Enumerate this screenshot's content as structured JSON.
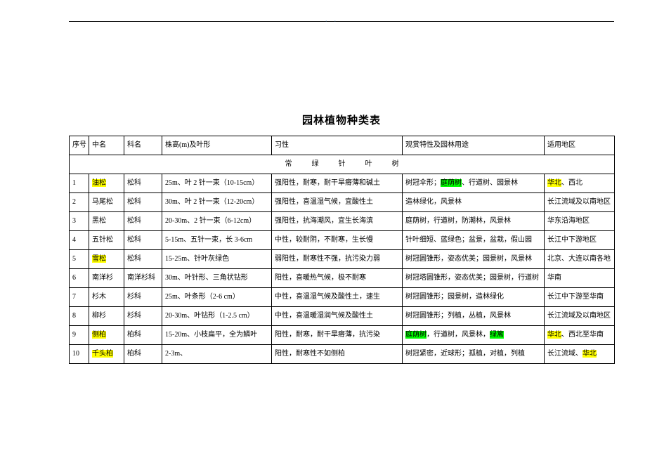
{
  "title": "园林植物种类表",
  "headers": {
    "index": "序号",
    "name": "中名",
    "family": "科名",
    "form": "株高(m)及叶形",
    "habit": "习性",
    "use": "观赏特性及园林用途",
    "region": "适用地区"
  },
  "section_label": "常绿针叶树",
  "rows": [
    {
      "idx": "1",
      "name": "油松",
      "name_hl": true,
      "family": "松科",
      "form": "25m、叶 2 针一束（10-15cm）",
      "habit": "强阳性，耐寒，耐干旱瘠薄和碱土",
      "use_pre": "树冠伞形；",
      "use_hl": "庭荫树",
      "use_hl_class": "hl-green",
      "use_post": "、行道树、园景林",
      "region_hl": "华北",
      "region_hl_class": "hl-yellow",
      "region_post": "、西北"
    },
    {
      "idx": "2",
      "name": "马尾松",
      "family": "松科",
      "form": "30m、叶 2 针一束（12-20cm）",
      "habit": "强阳性，喜温湿气候，宜酸性土",
      "use_pre": "造林绿化，风景林",
      "region_post": "长江流域及以南地区"
    },
    {
      "idx": "3",
      "name": "黑松",
      "family": "松科",
      "form": "20-30m、2 针一束（6-12cm）",
      "habit": "强阳性，抗海潮风，宜生长海滨",
      "use_pre": "庭荫树，行道树，防潮林，风景林",
      "region_post": "华东沿海地区"
    },
    {
      "idx": "4",
      "name": "五针松",
      "family": "松科",
      "form": "5-15m、五针一束，长 3-6cm",
      "habit": "中性，较耐阴，不耐寒，生长慢",
      "use_pre": "针叶细短、蓝绿色；盆景，盆栽，假山园",
      "region_post": "长江中下游地区"
    },
    {
      "idx": "5",
      "name": "雪松",
      "name_hl": true,
      "family": "松科",
      "form": "15-25m、针叶灰绿色",
      "habit": "弱阳性，耐寒性不强，抗污染力弱",
      "use_pre": "树冠圆锥形，姿态优美；园景树，风景林",
      "region_post": "北京、大连以南各地"
    },
    {
      "idx": "6",
      "name": "南洋杉",
      "family": "南洋杉科",
      "form": "30m、叶针形、三角状钻形",
      "habit": "阳性，喜暖热气候，极不耐寒",
      "use_pre": "树冠塔圆锥形，姿态优美；园景树，行道树",
      "region_post": "华南"
    },
    {
      "idx": "7",
      "name": "杉木",
      "family": "杉科",
      "form": "25m、叶条形（2-6 cm）",
      "habit": "中性，喜温湿气候及酸性土，速生",
      "use_pre": "树冠圆锥形；园景树，造林绿化",
      "region_post": "长江中下游至华南"
    },
    {
      "idx": "8",
      "name": "柳杉",
      "family": "杉科",
      "form": "20-30m、叶钻形（1-2.5 cm）",
      "habit": "中性，喜温暖湿润气候及酸性土",
      "use_pre": "树冠圆锥形；列植，丛植，风景林",
      "region_post": "长江流域及以南地区"
    },
    {
      "idx": "9",
      "name": "侧柏",
      "name_hl": true,
      "family": "柏科",
      "form": "15-20m、小枝扁平，全为鳞叶",
      "habit": "阳性，耐寒，耐干旱瘠薄，抗污染",
      "use_hl": "庭荫树",
      "use_hl_class": "hl-green",
      "use_post": "，行道树，风景林，",
      "use_hl2": "绿篱",
      "use_hl2_class": "hl-green",
      "region_hl": "华北",
      "region_hl_class": "hl-yellow",
      "region_post": "、西北至华南"
    },
    {
      "idx": "10",
      "name": "千头柏",
      "name_hl": true,
      "family": "柏科",
      "form": "2-3m、",
      "habit": "阳性，耐寒性不如侧柏",
      "use_pre": "树冠紧密，近球形；孤植，对植，列植",
      "region_post": "长江流域、",
      "region_hl_after": "华北",
      "region_hl_after_class": "hl-yellow"
    }
  ]
}
